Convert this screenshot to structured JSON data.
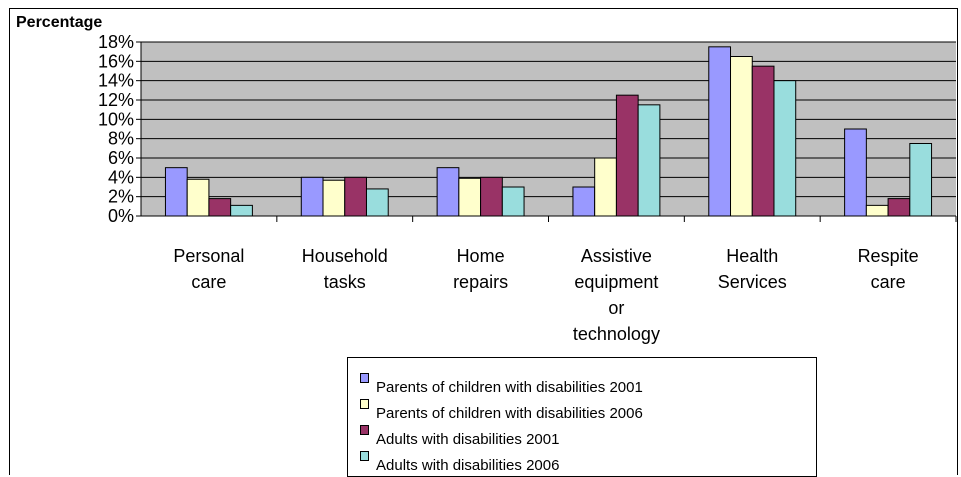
{
  "chart_data": {
    "type": "bar",
    "ylabel": "Percentage",
    "ylim": [
      0,
      18
    ],
    "yticks": [
      "0%",
      "2%",
      "4%",
      "6%",
      "8%",
      "10%",
      "12%",
      "14%",
      "16%",
      "18%"
    ],
    "grid": true,
    "legend_position": "bottom",
    "categories": [
      [
        "Personal",
        "care"
      ],
      [
        "Household",
        "tasks"
      ],
      [
        "Home",
        "repairs"
      ],
      [
        "Assistive",
        "equipment",
        "or",
        "technology"
      ],
      [
        "Health",
        "Services"
      ],
      [
        "Respite",
        "care"
      ]
    ],
    "series": [
      {
        "name": "Parents of children with disabilities 2001",
        "color": "#9999ff",
        "values": [
          5,
          4,
          5,
          3,
          17.5,
          9
        ]
      },
      {
        "name": "Parents of children with disabilities 2006",
        "color": "#ffffcc",
        "values": [
          3.8,
          3.7,
          3.9,
          6,
          16.5,
          1.1
        ]
      },
      {
        "name": "Adults with disabilities 2001",
        "color": "#993366",
        "values": [
          1.8,
          4,
          4,
          12.5,
          15.5,
          1.8
        ]
      },
      {
        "name": "Adults with disabilities 2006",
        "color": "#99dddd",
        "values": [
          1.1,
          2.8,
          3,
          11.5,
          14,
          7.5
        ]
      }
    ]
  }
}
